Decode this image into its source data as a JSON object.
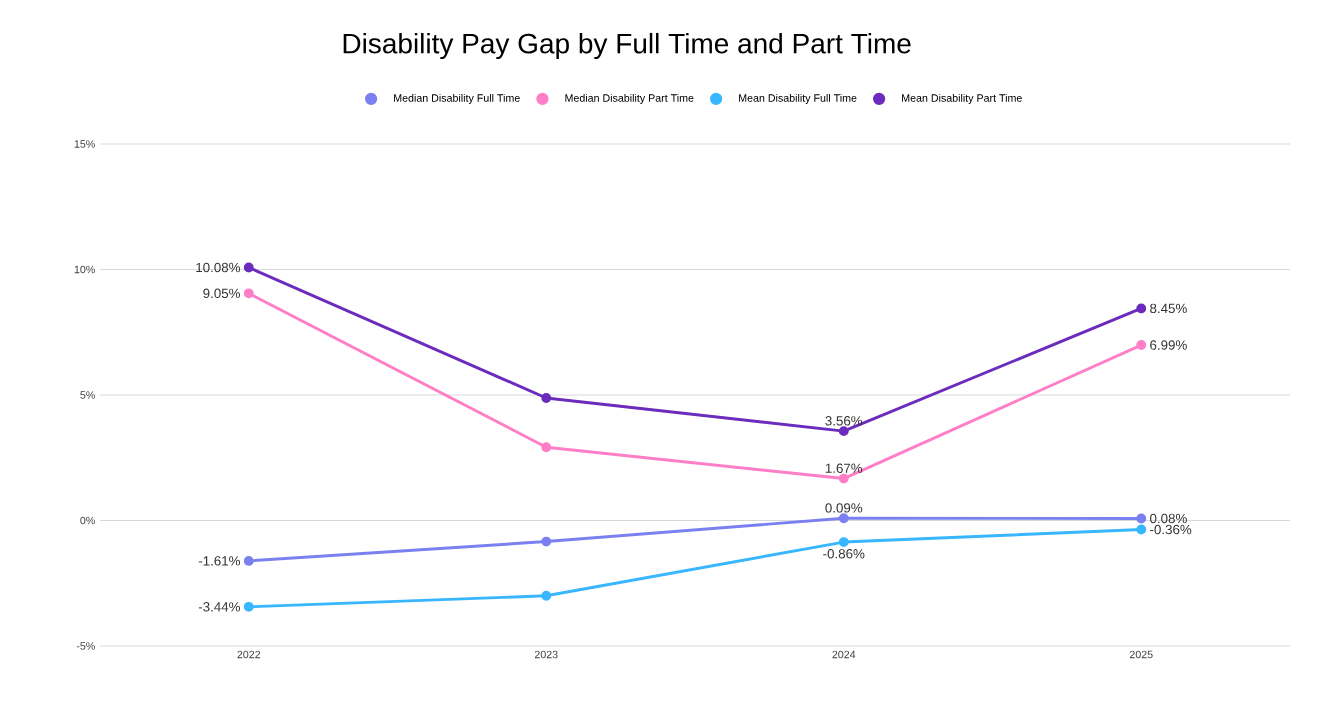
{
  "chart_data": {
    "type": "line",
    "title": "Disability Pay Gap by Full Time and Part Time",
    "categories": [
      "2022",
      "2023",
      "2024",
      "2025"
    ],
    "series": [
      {
        "name": "Median Disability Full Time",
        "color": "#7b80f0",
        "values": [
          -1.61,
          -0.84,
          0.09,
          0.08
        ],
        "value_labels": [
          "-1.61%",
          null,
          "0.09%",
          "0.08%"
        ]
      },
      {
        "name": "Median Disability Part Time",
        "color": "#ff7ec8",
        "values": [
          9.05,
          2.92,
          1.67,
          6.99
        ],
        "value_labels": [
          "9.05%",
          null,
          "1.67%",
          "6.99%"
        ]
      },
      {
        "name": "Mean Disability Full Time",
        "color": "#38b6ff",
        "values": [
          -3.44,
          -3.0,
          -0.86,
          -0.36
        ],
        "value_labels": [
          "-3.44%",
          null,
          "-0.86%",
          "-0.36%"
        ]
      },
      {
        "name": "Mean Disability Part Time",
        "color": "#6b2bbd",
        "values": [
          10.08,
          4.88,
          3.56,
          8.45
        ],
        "value_labels": [
          "10.08%",
          null,
          "3.56%",
          "8.45%"
        ]
      }
    ],
    "ylim": [
      -5,
      15
    ],
    "yticks": [
      {
        "value": -5,
        "label": "-5%"
      },
      {
        "value": 0,
        "label": "0%"
      },
      {
        "value": 5,
        "label": "5%"
      },
      {
        "value": 10,
        "label": "10%"
      },
      {
        "value": 15,
        "label": "15%"
      }
    ],
    "grid": "y",
    "legend": "top",
    "marker": "circle",
    "line_style": "solid"
  }
}
